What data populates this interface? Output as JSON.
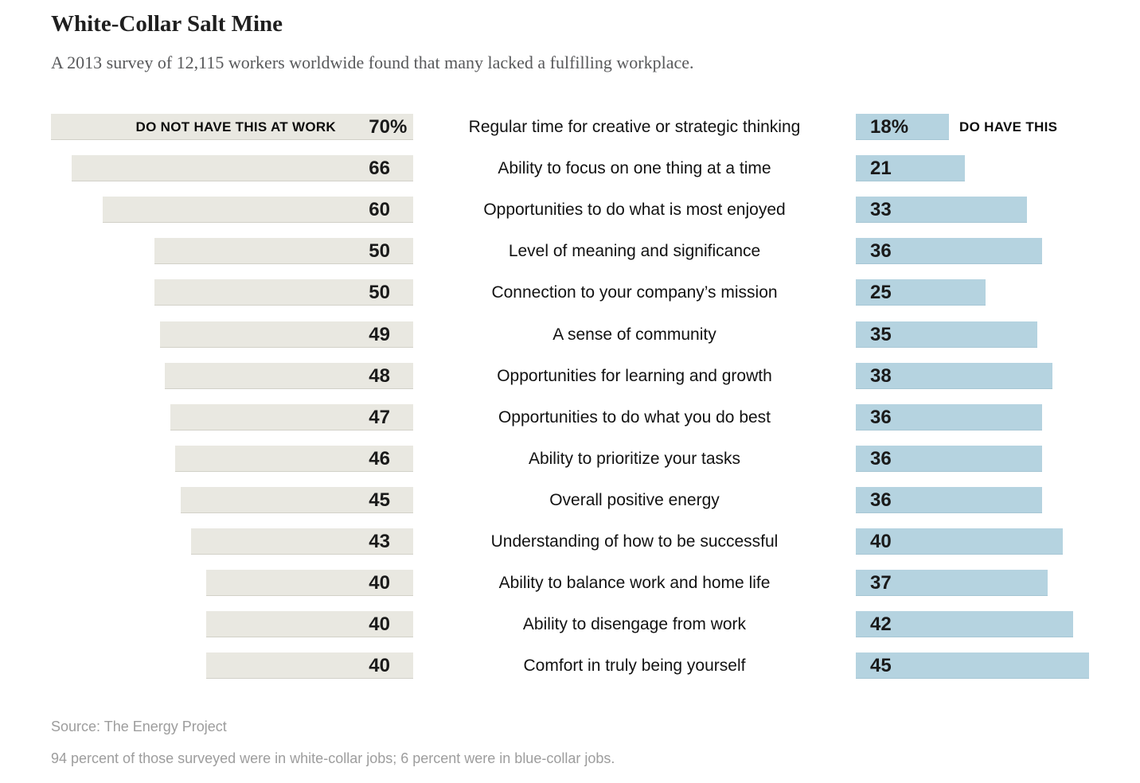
{
  "header": {
    "title": "White-Collar Salt Mine",
    "subtitle": "A 2013 survey of 12,115 workers worldwide found that many lacked a fulfilling workplace."
  },
  "chart_data": {
    "type": "bar",
    "orientation": "diverging-horizontal",
    "unit": "percent",
    "value_range": [
      0,
      70
    ],
    "grid": false,
    "left_series_label": "DO NOT HAVE THIS AT WORK",
    "right_series_label": "DO HAVE THIS",
    "categories": [
      "Regular time for creative or strategic thinking",
      "Ability to focus on one thing at a time",
      "Opportunities to do what is most enjoyed",
      "Level of meaning and significance",
      "Connection to your company’s mission",
      "A sense of community",
      "Opportunities for learning and growth",
      "Opportunities to do what you do best",
      "Ability to prioritize your tasks",
      "Overall positive energy",
      "Understanding of how to be successful",
      "Ability to balance work and home life",
      "Ability to disengage from work",
      "Comfort in truly being yourself"
    ],
    "series": [
      {
        "name": "DO NOT HAVE THIS AT WORK",
        "values": [
          70,
          66,
          60,
          50,
          50,
          49,
          48,
          47,
          46,
          45,
          43,
          40,
          40,
          40
        ]
      },
      {
        "name": "DO HAVE THIS",
        "values": [
          18,
          21,
          33,
          36,
          25,
          35,
          38,
          36,
          36,
          36,
          40,
          37,
          42,
          45
        ]
      }
    ],
    "value_labels": {
      "left": [
        "70%",
        "66",
        "60",
        "50",
        "50",
        "49",
        "48",
        "47",
        "46",
        "45",
        "43",
        "40",
        "40",
        "40"
      ],
      "right": [
        "18%",
        "21",
        "33",
        "36",
        "25",
        "35",
        "38",
        "36",
        "36",
        "36",
        "40",
        "37",
        "42",
        "45"
      ]
    },
    "colors": {
      "left_bar": "#e9e8e1",
      "right_bar": "#b5d3e0",
      "value_text": "#1a1a1a",
      "category_text": "#121212",
      "title_text": "#1f1f1f",
      "subtitle_text": "#58595b",
      "footer_text": "#9d9d9d"
    }
  },
  "footer": {
    "source": "Source: The Energy Project",
    "note": "94 percent of those surveyed were in white-collar jobs; 6 percent were in blue-collar jobs."
  }
}
